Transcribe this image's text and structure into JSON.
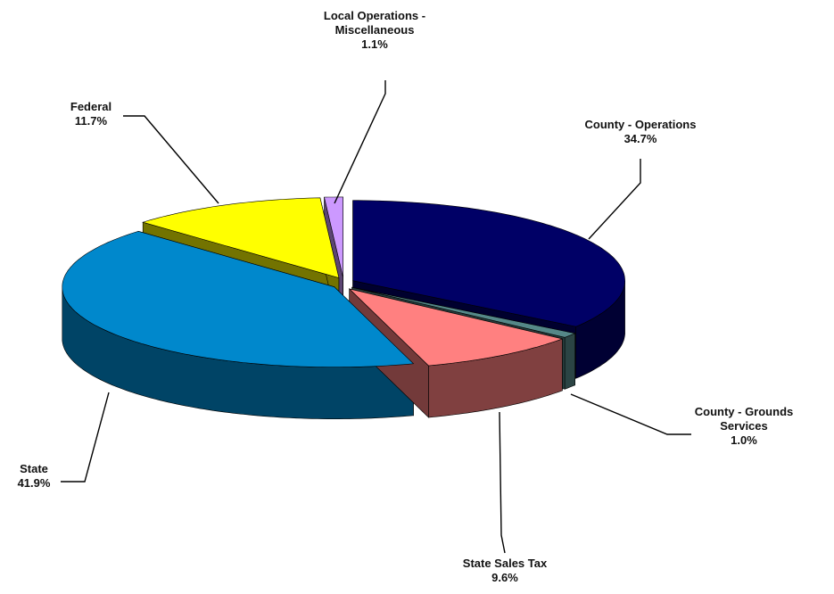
{
  "chart_data": {
    "type": "pie",
    "categories": [
      "County - Operations",
      "County -  Grounds Services",
      "State Sales Tax",
      "State",
      "Federal",
      "Local Operations - Miscellaneous"
    ],
    "values": [
      34.7,
      1.0,
      9.6,
      41.9,
      11.7,
      1.1
    ],
    "value_labels": [
      "34.7%",
      "1.0%",
      "9.6%",
      "41.9%",
      "11.7%",
      "1.1%"
    ],
    "colors": [
      "#000066",
      "#558888",
      "#ff8080",
      "#0088cc",
      "#ffff00",
      "#cc99ff"
    ]
  }
}
